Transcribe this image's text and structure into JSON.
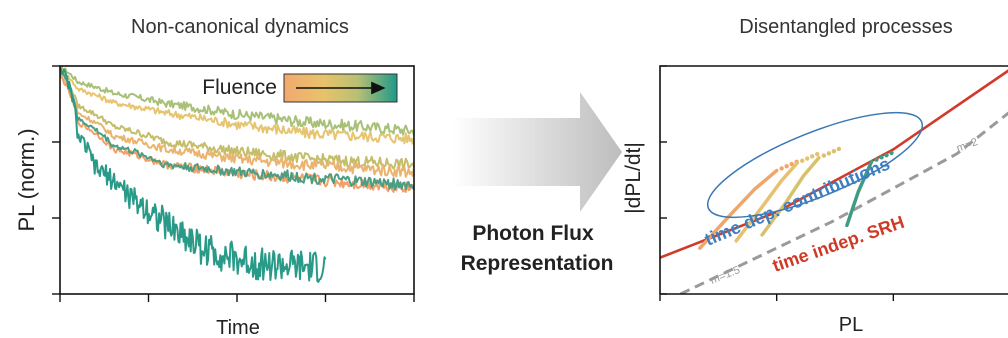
{
  "left_panel": {
    "title": "Non-canonical dynamics",
    "xlabel": "Time",
    "ylabel": "PL (norm.)",
    "legend_label": "Fluence"
  },
  "middle": {
    "line1": "Photon Flux",
    "line2": "Representation"
  },
  "right_panel": {
    "title": "Disentangled processes",
    "xlabel": "PL",
    "ylabel": "|dPL/dt|",
    "annotation_time_dep": "time dep. contributions",
    "annotation_time_indep": "time indep. SRH",
    "label_slope_low": "m=1.5",
    "label_slope_high": "m=2"
  },
  "chart_data": [
    {
      "type": "line",
      "title": "Non-canonical dynamics",
      "xlabel": "Time",
      "ylabel": "PL (norm.)",
      "yscale": "log",
      "xlim": [
        0,
        1
      ],
      "ylim": [
        0.001,
        1
      ],
      "legend": {
        "title": "Fluence",
        "placement": "top-right",
        "colors": [
          "#f1a96f",
          "#e8c26a",
          "#b9c074",
          "#2c9d8c"
        ]
      },
      "series": [
        {
          "color": "#a8c078",
          "x": [
            0,
            0.05,
            0.15,
            0.3,
            0.5,
            0.7,
            0.85,
            1.0
          ],
          "y": [
            1.0,
            0.62,
            0.44,
            0.32,
            0.23,
            0.18,
            0.16,
            0.14
          ]
        },
        {
          "color": "#e6c571",
          "x": [
            0,
            0.05,
            0.15,
            0.3,
            0.5,
            0.7,
            0.85,
            1.0
          ],
          "y": [
            0.9,
            0.5,
            0.33,
            0.24,
            0.17,
            0.13,
            0.12,
            0.11
          ]
        },
        {
          "color": "#c4bd6a",
          "x": [
            0,
            0.05,
            0.15,
            0.3,
            0.5,
            0.7,
            0.85,
            1.0
          ],
          "y": [
            0.85,
            0.3,
            0.16,
            0.1,
            0.075,
            0.06,
            0.055,
            0.05
          ]
        },
        {
          "color": "#eab46e",
          "x": [
            0,
            0.05,
            0.15,
            0.3,
            0.5,
            0.7,
            0.85,
            1.0
          ],
          "y": [
            0.8,
            0.24,
            0.12,
            0.08,
            0.06,
            0.05,
            0.045,
            0.04
          ]
        },
        {
          "color": "#f1a068",
          "x": [
            0,
            0.05,
            0.15,
            0.3,
            0.5,
            0.7,
            0.85,
            1.0
          ],
          "y": [
            0.75,
            0.18,
            0.08,
            0.05,
            0.038,
            0.032,
            0.028,
            0.025
          ]
        },
        {
          "color": "#4c9d82",
          "x": [
            0,
            0.05,
            0.15,
            0.3,
            0.5,
            0.7,
            0.85,
            1.0
          ],
          "y": [
            0.9,
            0.2,
            0.09,
            0.05,
            0.04,
            0.034,
            0.03,
            0.027
          ]
        },
        {
          "color": "#2a9a88",
          "x": [
            0,
            0.05,
            0.1,
            0.2,
            0.3,
            0.4,
            0.5,
            0.6,
            0.7,
            0.75
          ],
          "y": [
            1.0,
            0.12,
            0.045,
            0.018,
            0.008,
            0.004,
            0.0028,
            0.0024,
            0.0022,
            0.0022
          ]
        }
      ]
    },
    {
      "type": "line",
      "title": "Disentangled processes",
      "xlabel": "PL",
      "ylabel": "|dPL/dt|",
      "xscale": "log",
      "yscale": "log",
      "xlim": [
        0.001,
        1
      ],
      "ylim": [
        0.001,
        1
      ],
      "series": [
        {
          "color": "#d13a2a",
          "x": [
            0.001,
            0.01,
            0.1,
            1.0
          ],
          "y": [
            0.003,
            0.012,
            0.08,
            0.9
          ]
        },
        {
          "color": "#9a9a9a",
          "dashed": true,
          "x": [
            0.0015,
            0.03,
            0.35,
            1.0
          ],
          "y": [
            0.001,
            0.009,
            0.07,
            0.25
          ]
        }
      ],
      "scatter": [
        {
          "color": "#f0a56a",
          "x": [
            0.0022,
            0.004,
            0.0065,
            0.01
          ],
          "y": [
            0.004,
            0.011,
            0.024,
            0.042
          ]
        },
        {
          "color": "#e8c070",
          "x": [
            0.0045,
            0.0075,
            0.011,
            0.015
          ],
          "y": [
            0.005,
            0.014,
            0.031,
            0.053
          ]
        },
        {
          "color": "#d9c06c",
          "x": [
            0.0075,
            0.012,
            0.017,
            0.023
          ],
          "y": [
            0.006,
            0.016,
            0.036,
            0.062
          ]
        },
        {
          "color": "#3f9c82",
          "x": [
            0.04,
            0.05,
            0.065
          ],
          "y": [
            0.008,
            0.022,
            0.055
          ]
        }
      ]
    }
  ]
}
